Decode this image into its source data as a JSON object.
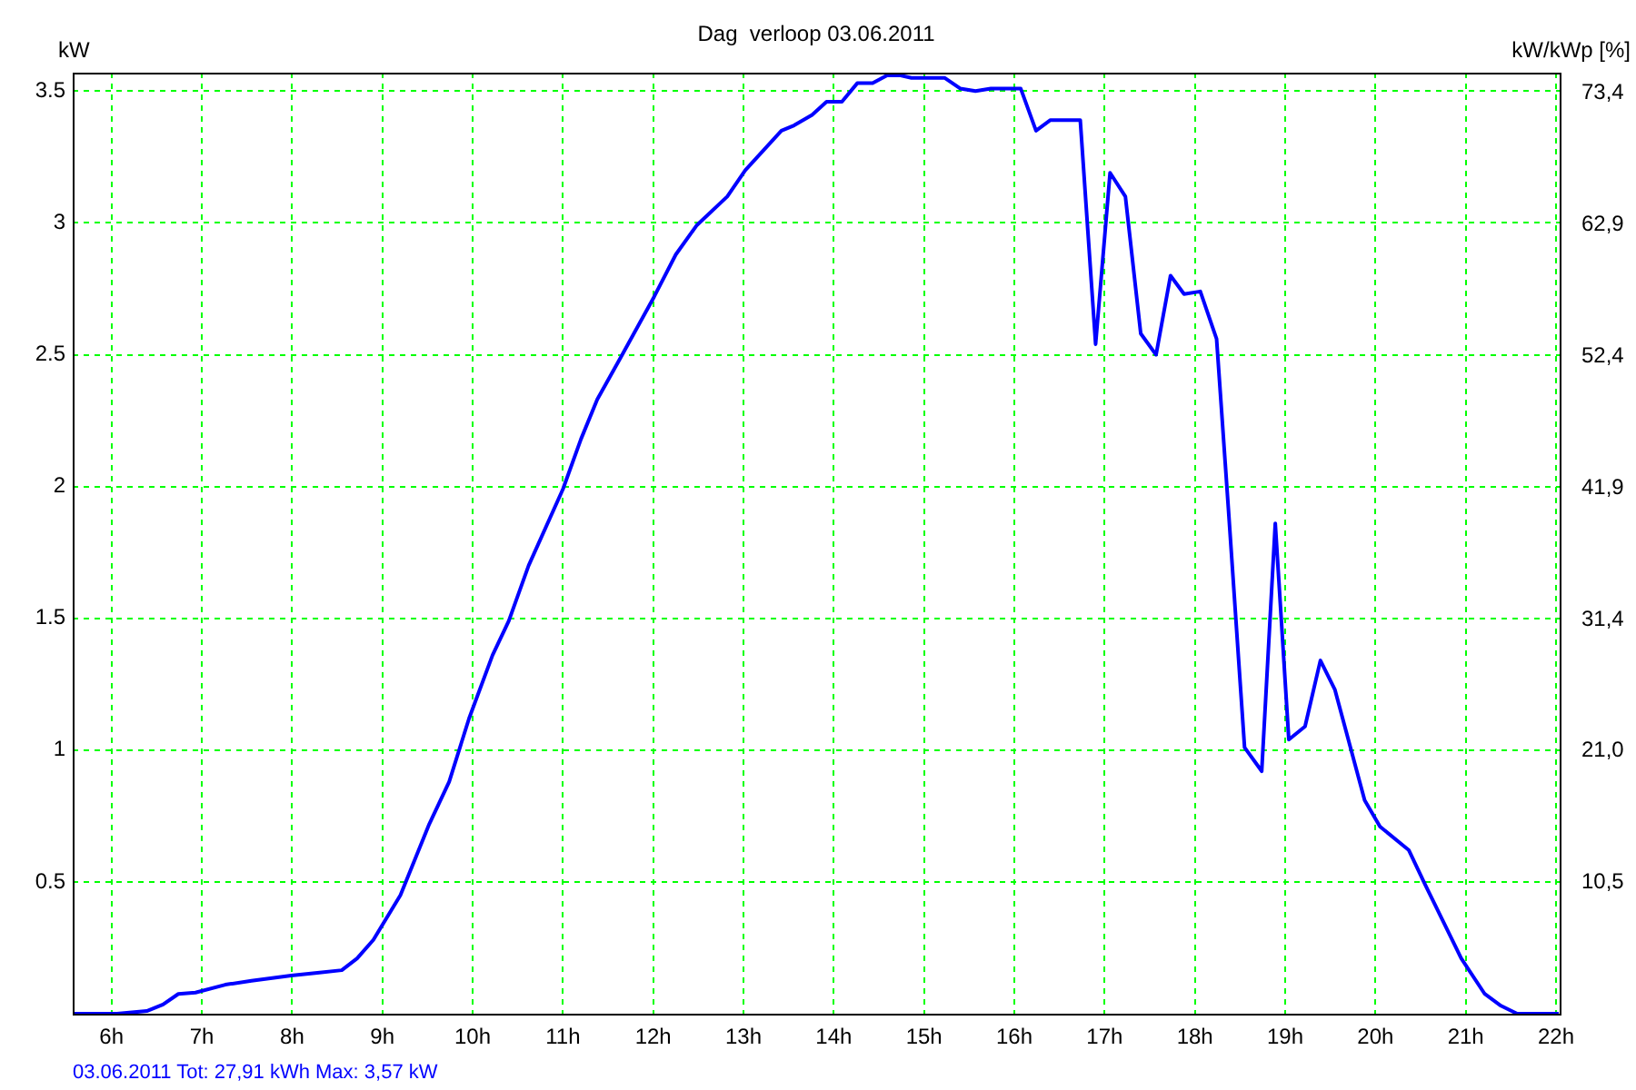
{
  "chart_data": {
    "type": "line",
    "title": "Dag  verloop 03.06.2011",
    "ylabel": "kW",
    "y2label": "kW/kWp [%]",
    "annotations": [
      "03.06.2011 Tot: 27,91 kWh Max: 3,57 kW"
    ],
    "x": [
      5.57,
      6.06,
      6.39,
      6.57,
      6.74,
      6.93,
      7.26,
      7.55,
      7.99,
      8.28,
      8.55,
      8.72,
      8.9,
      9.2,
      9.52,
      9.74,
      9.96,
      10.22,
      10.4,
      10.62,
      11.0,
      11.2,
      11.38,
      11.64,
      12.01,
      12.25,
      12.48,
      12.82,
      13.02,
      13.42,
      13.56,
      13.76,
      13.92,
      14.09,
      14.26,
      14.43,
      14.59,
      14.73,
      14.86,
      15.23,
      15.4,
      15.57,
      15.74,
      16.07,
      16.24,
      16.4,
      16.73,
      16.9,
      17.06,
      17.23,
      17.4,
      17.57,
      17.73,
      17.88,
      18.06,
      18.24,
      18.37,
      18.55,
      18.74,
      18.89,
      19.04,
      19.22,
      19.39,
      19.55,
      19.88,
      20.05,
      20.37,
      20.55,
      20.95,
      21.21,
      21.39,
      21.57,
      22.03
    ],
    "series": [
      {
        "color": "#0000ff",
        "values": [
          0,
          0,
          0.01,
          0.035,
          0.075,
          0.08,
          0.11,
          0.125,
          0.145,
          0.155,
          0.165,
          0.21,
          0.28,
          0.45,
          0.72,
          0.88,
          1.12,
          1.36,
          1.49,
          1.7,
          1.99,
          2.18,
          2.33,
          2.49,
          2.72,
          2.88,
          2.99,
          3.1,
          3.2,
          3.35,
          3.37,
          3.41,
          3.46,
          3.46,
          3.53,
          3.53,
          3.56,
          3.56,
          3.55,
          3.55,
          3.51,
          3.5,
          3.51,
          3.51,
          3.35,
          3.39,
          3.39,
          2.54,
          3.19,
          3.1,
          2.58,
          2.5,
          2.8,
          2.73,
          2.74,
          2.56,
          1.92,
          1.01,
          0.92,
          1.86,
          1.04,
          1.09,
          1.34,
          1.23,
          0.81,
          0.71,
          0.62,
          0.49,
          0.21,
          0.075,
          0.03,
          0,
          0
        ]
      }
    ],
    "xlim": [
      5.57,
      22.04
    ],
    "ylim": [
      0,
      3.57
    ],
    "y2lim": [
      0,
      75
    ],
    "xticks": [
      {
        "value": 6,
        "label": "6h"
      },
      {
        "value": 7,
        "label": "7h"
      },
      {
        "value": 8,
        "label": "8h"
      },
      {
        "value": 9,
        "label": "9h"
      },
      {
        "value": 10,
        "label": "10h"
      },
      {
        "value": 11,
        "label": "11h"
      },
      {
        "value": 12,
        "label": "12h"
      },
      {
        "value": 13,
        "label": "13h"
      },
      {
        "value": 14,
        "label": "14h"
      },
      {
        "value": 15,
        "label": "15h"
      },
      {
        "value": 16,
        "label": "16h"
      },
      {
        "value": 17,
        "label": "17h"
      },
      {
        "value": 18,
        "label": "18h"
      },
      {
        "value": 19,
        "label": "19h"
      },
      {
        "value": 20,
        "label": "20h"
      },
      {
        "value": 21,
        "label": "21h"
      },
      {
        "value": 22,
        "label": "22h"
      }
    ],
    "yticks": [
      0.5,
      1,
      1.5,
      2,
      2.5,
      3,
      3.5
    ],
    "y2ticks": [
      {
        "value": 10.5,
        "label": "10,5"
      },
      {
        "value": 21.0,
        "label": "21,0"
      },
      {
        "value": 31.4,
        "label": "31,4"
      },
      {
        "value": 41.9,
        "label": "41,9"
      },
      {
        "value": 52.4,
        "label": "52,4"
      },
      {
        "value": 62.9,
        "label": "62,9"
      },
      {
        "value": 73.4,
        "label": "73,4"
      }
    ],
    "grid": true,
    "marker": "none",
    "line_style": "solid"
  }
}
